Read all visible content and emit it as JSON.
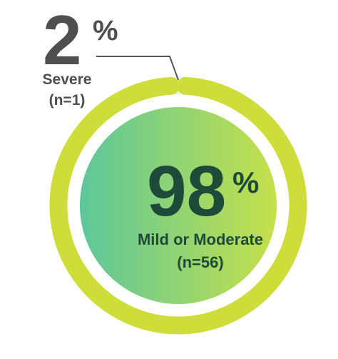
{
  "chart_data": {
    "type": "pie",
    "slices": [
      {
        "label": "Severe",
        "count_label": "(n=1)",
        "n": 1,
        "percent": 2,
        "percent_number": "2",
        "percent_sign": "%",
        "color": "#e6f3ef"
      },
      {
        "label": "Mild or Moderate",
        "count_label": "(n=56)",
        "n": 56,
        "percent": 98,
        "percent_number": "98",
        "percent_sign": "%",
        "color": "#cfdd3a"
      }
    ],
    "colors": {
      "ring": "#cfdd3a",
      "gap": "#e6f3ef",
      "inner_gradient_start": "#5cc79b",
      "inner_gradient_end": "#c6e04a",
      "main_text": "#1d4a39",
      "severe_text": "#4f4f4f",
      "leader_line": "#555555"
    }
  }
}
